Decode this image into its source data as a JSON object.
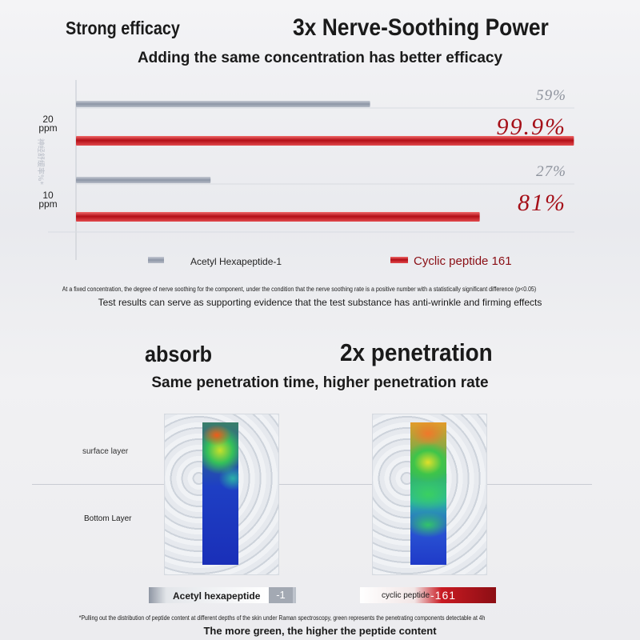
{
  "header": {
    "left_title": "Strong efficacy",
    "main_title": "3x Nerve-Soothing Power",
    "subtitle": "Adding the same concentration has better efficacy"
  },
  "chart_data": {
    "type": "bar",
    "orientation": "horizontal",
    "ylabel": "神经舒缓率%*",
    "categories": [
      "20 ppm",
      "10 ppm"
    ],
    "category_labels": [
      [
        "20",
        "ppm"
      ],
      [
        "10",
        "ppm"
      ]
    ],
    "series": [
      {
        "name": "Acetyl Hexapeptide-1",
        "values": [
          59,
          27
        ],
        "labels": [
          "59%",
          "27%"
        ],
        "color": "#9aa3b2"
      },
      {
        "name": "Cyclic peptide 161",
        "values": [
          99.9,
          81
        ],
        "labels": [
          "99.9%",
          "81%"
        ],
        "color": "#c8141c"
      }
    ],
    "xlim": [
      0,
      100
    ],
    "legend_position": "bottom",
    "grid": true
  },
  "notes": {
    "statistics": "At a fixed concentration, the degree of nerve soothing for the component, under the condition that the nerve soothing rate is a positive number with a statistically significant difference (p<0.05)",
    "evidence": "Test results can serve as supporting evidence that the test substance has anti-wrinkle and firming effects"
  },
  "section2": {
    "left_title": "absorb",
    "main_title": "2x penetration",
    "subtitle": "Same penetration time, higher penetration rate",
    "surface_label": "surface layer",
    "bottom_label": "Bottom Layer",
    "left_tag": "Acetyl hexapeptide",
    "left_tag_badge": "-1",
    "right_tag": "cyclic peptide",
    "right_tag_badge": "-161",
    "footnote": "*Pulling out the distribution of peptide content at different depths of the skin under Raman spectroscopy, green represents the penetrating components detectable at 4h",
    "conclusion": "The more green, the higher the peptide content"
  }
}
